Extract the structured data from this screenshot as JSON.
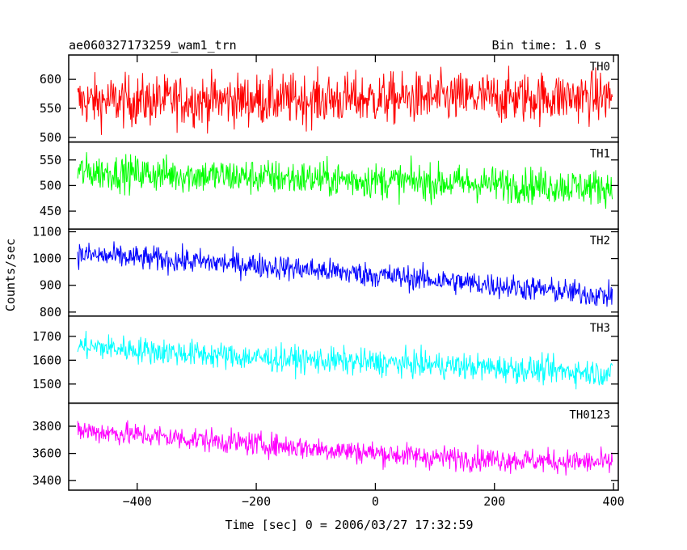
{
  "header": {
    "title": "ae060327173259_wam1_trn",
    "bin_time": "Bin time: 1.0 s"
  },
  "chart_data": {
    "type": "line",
    "xlabel": "Time [sec] 0 = 2006/03/27 17:32:59",
    "ylabel": "Counts/sec",
    "xlim": [
      -515,
      408
    ],
    "xticks": [
      -400,
      -200,
      0,
      200,
      400
    ],
    "x_start": -500,
    "x_end": 398,
    "panels": [
      {
        "name": "TH0",
        "color": "#ff0000",
        "ylim": [
          492,
          642
        ],
        "yticks": [
          500,
          550,
          600
        ],
        "trend": [
          [
            -500,
            562
          ],
          [
            398,
            570
          ]
        ],
        "noise": 38
      },
      {
        "name": "TH1",
        "color": "#00ff00",
        "ylim": [
          415,
          585
        ],
        "yticks": [
          450,
          500,
          550
        ],
        "trend": [
          [
            -500,
            527
          ],
          [
            398,
            496
          ]
        ],
        "noise": 30
      },
      {
        "name": "TH2",
        "color": "#0000ff",
        "ylim": [
          785,
          1110
        ],
        "yticks": [
          800,
          900,
          1000,
          1100
        ],
        "trend": [
          [
            -500,
            1015
          ],
          [
            -200,
            975
          ],
          [
            100,
            920
          ],
          [
            398,
            860
          ]
        ],
        "noise": 40
      },
      {
        "name": "TH3",
        "color": "#00ffff",
        "ylim": [
          1420,
          1785
        ],
        "yticks": [
          1500,
          1600,
          1700
        ],
        "trend": [
          [
            -500,
            1660
          ],
          [
            -200,
            1610
          ],
          [
            100,
            1580
          ],
          [
            398,
            1545
          ]
        ],
        "noise": 48
      },
      {
        "name": "TH0123",
        "color": "#ff00ff",
        "ylim": [
          3330,
          3970
        ],
        "yticks": [
          3400,
          3600,
          3800
        ],
        "trend": [
          [
            -500,
            3770
          ],
          [
            -200,
            3670
          ],
          [
            100,
            3570
          ],
          [
            398,
            3530
          ]
        ],
        "noise": 75
      }
    ]
  }
}
